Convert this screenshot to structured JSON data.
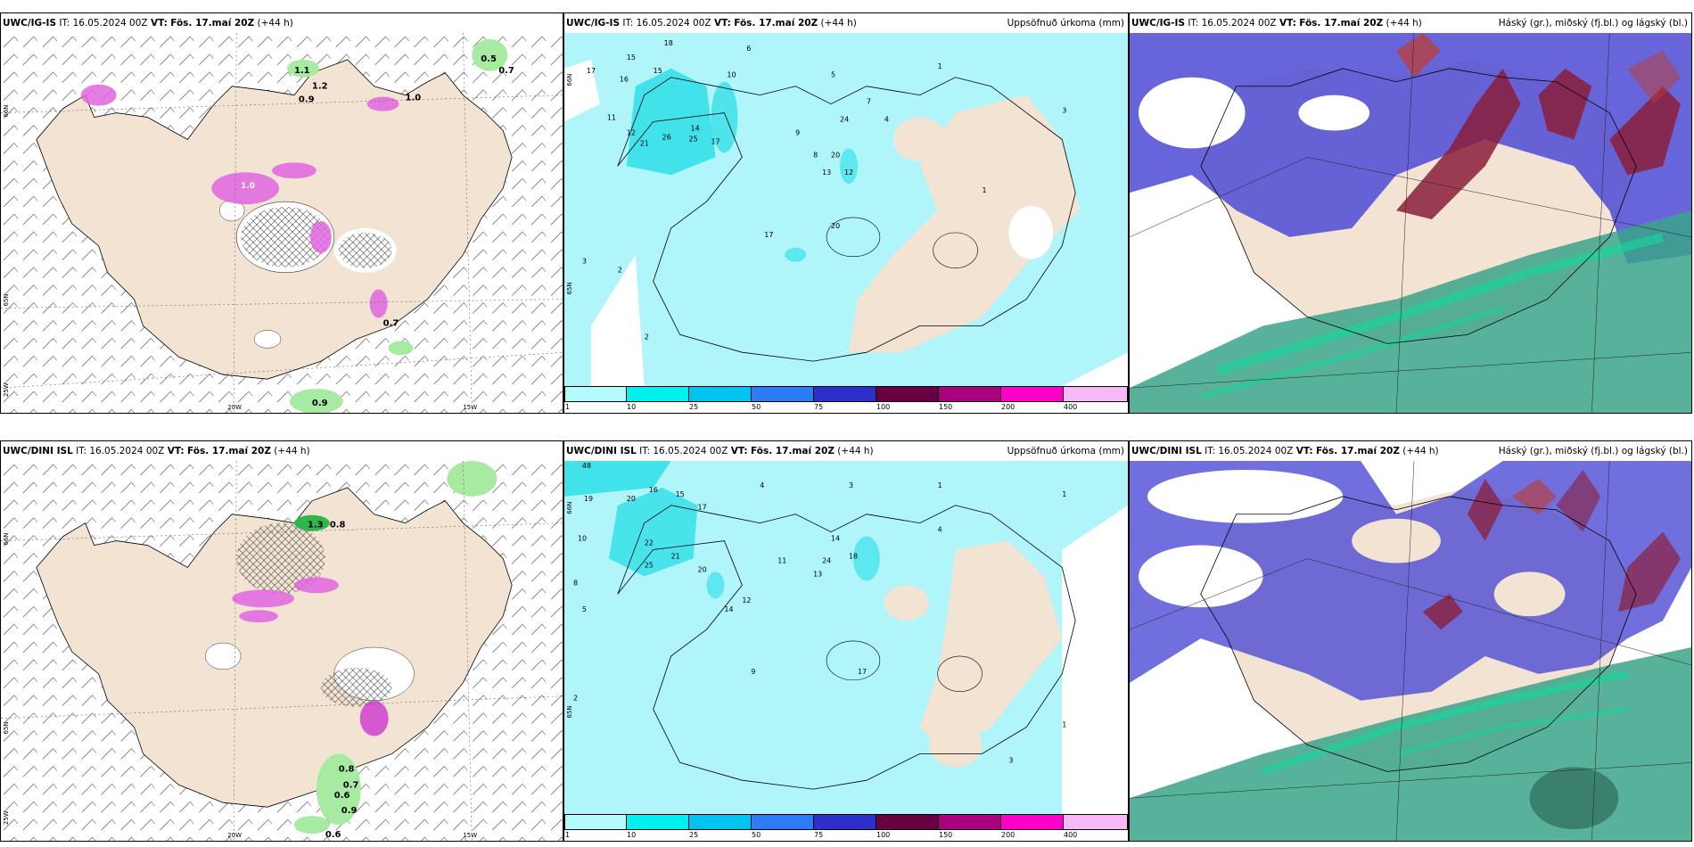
{
  "rows": [
    {
      "model": "UWC/IG-IS",
      "it": "IT: 16.05.2024 00Z",
      "vt_label": "VT:",
      "vt": "Fös. 17.maí 20Z",
      "lead": "(+44 h)",
      "wind_values": [
        "1.1",
        "1.0",
        "1.2",
        "0.9",
        "0.5",
        "0.7",
        "1.0",
        "0.7",
        "0.9"
      ],
      "precip_values": [
        "18",
        "15",
        "17",
        "15",
        "16",
        "11",
        "12",
        "21",
        "26",
        "25",
        "17",
        "14",
        "10",
        "6",
        "5",
        "9",
        "7",
        "8",
        "4",
        "3",
        "2",
        "1",
        "20",
        "12",
        "13",
        "24"
      ],
      "lat_labels": [
        "66N",
        "65N",
        "25W"
      ],
      "lon_labels": [
        "20W",
        "15W"
      ]
    },
    {
      "model": "UWC/DINI ISL",
      "it": "IT: 16.05.2024 00Z",
      "vt_label": "VT:",
      "vt": "Fös. 17.maí 20Z",
      "lead": "(+44 h)",
      "wind_values": [
        "1.3",
        "0.8",
        "0.8",
        "0.7",
        "0.6",
        "0.9",
        "0.6"
      ],
      "precip_values": [
        "48",
        "19",
        "20",
        "16",
        "15",
        "17",
        "22",
        "21",
        "25",
        "20",
        "10",
        "8",
        "5",
        "4",
        "3",
        "2",
        "1",
        "14",
        "18",
        "24",
        "13",
        "12",
        "11",
        "9"
      ],
      "lat_labels": [
        "66N",
        "65N",
        "25W"
      ],
      "lon_labels": [
        "20W",
        "15W"
      ]
    }
  ],
  "precip_title": "Uppsöfnuð úrkoma (mm)",
  "cloud_title": "Háský (gr.), miðský (fj.bl.) og lágský (bl.)",
  "colorbar": {
    "ticks": [
      "1",
      "10",
      "25",
      "50",
      "75",
      "100",
      "150",
      "200",
      "400"
    ],
    "colors": [
      "#b3fbff",
      "#00f0f0",
      "#00c4ef",
      "#2d7bf5",
      "#2d2fc8",
      "#660040",
      "#a8007f",
      "#ff00c8",
      "#f8b8f8"
    ]
  },
  "colors": {
    "land": "#f2e3d3",
    "precip_fill": "#aff5fa",
    "precip_strong": "#27dde6",
    "wind_green": "#a7eaa1",
    "wind_magenta": "#e066e0",
    "cloud_high": "#8b1f3a",
    "cloud_mid": "#4d4ad5",
    "cloud_low": "#3aa38a"
  }
}
